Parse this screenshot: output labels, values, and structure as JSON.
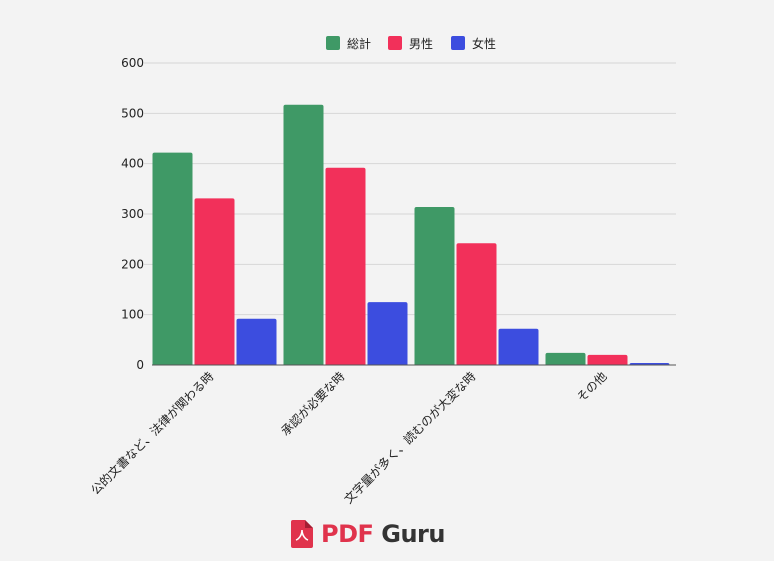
{
  "chart_data": {
    "type": "bar",
    "categories": [
      "公的文書など、法律が関わる時",
      "承認が必要な時",
      "文字量が多く、読むのが大変な時",
      "その他"
    ],
    "series": [
      {
        "name": "総計",
        "values": [
          422,
          517,
          314,
          24
        ],
        "color": "#3f9966"
      },
      {
        "name": "男性",
        "values": [
          331,
          392,
          242,
          20
        ],
        "color": "#f2305a"
      },
      {
        "name": "女性",
        "values": [
          92,
          125,
          72,
          4
        ],
        "color": "#3c4ddf"
      }
    ],
    "ylim": [
      0,
      600
    ],
    "yticks": [
      0,
      100,
      200,
      300,
      400,
      500,
      600
    ],
    "grid": true,
    "legend_position": "top-center"
  },
  "brand": {
    "pdf": "PDF",
    "guru": "Guru",
    "icon": "pdf-file-icon"
  }
}
